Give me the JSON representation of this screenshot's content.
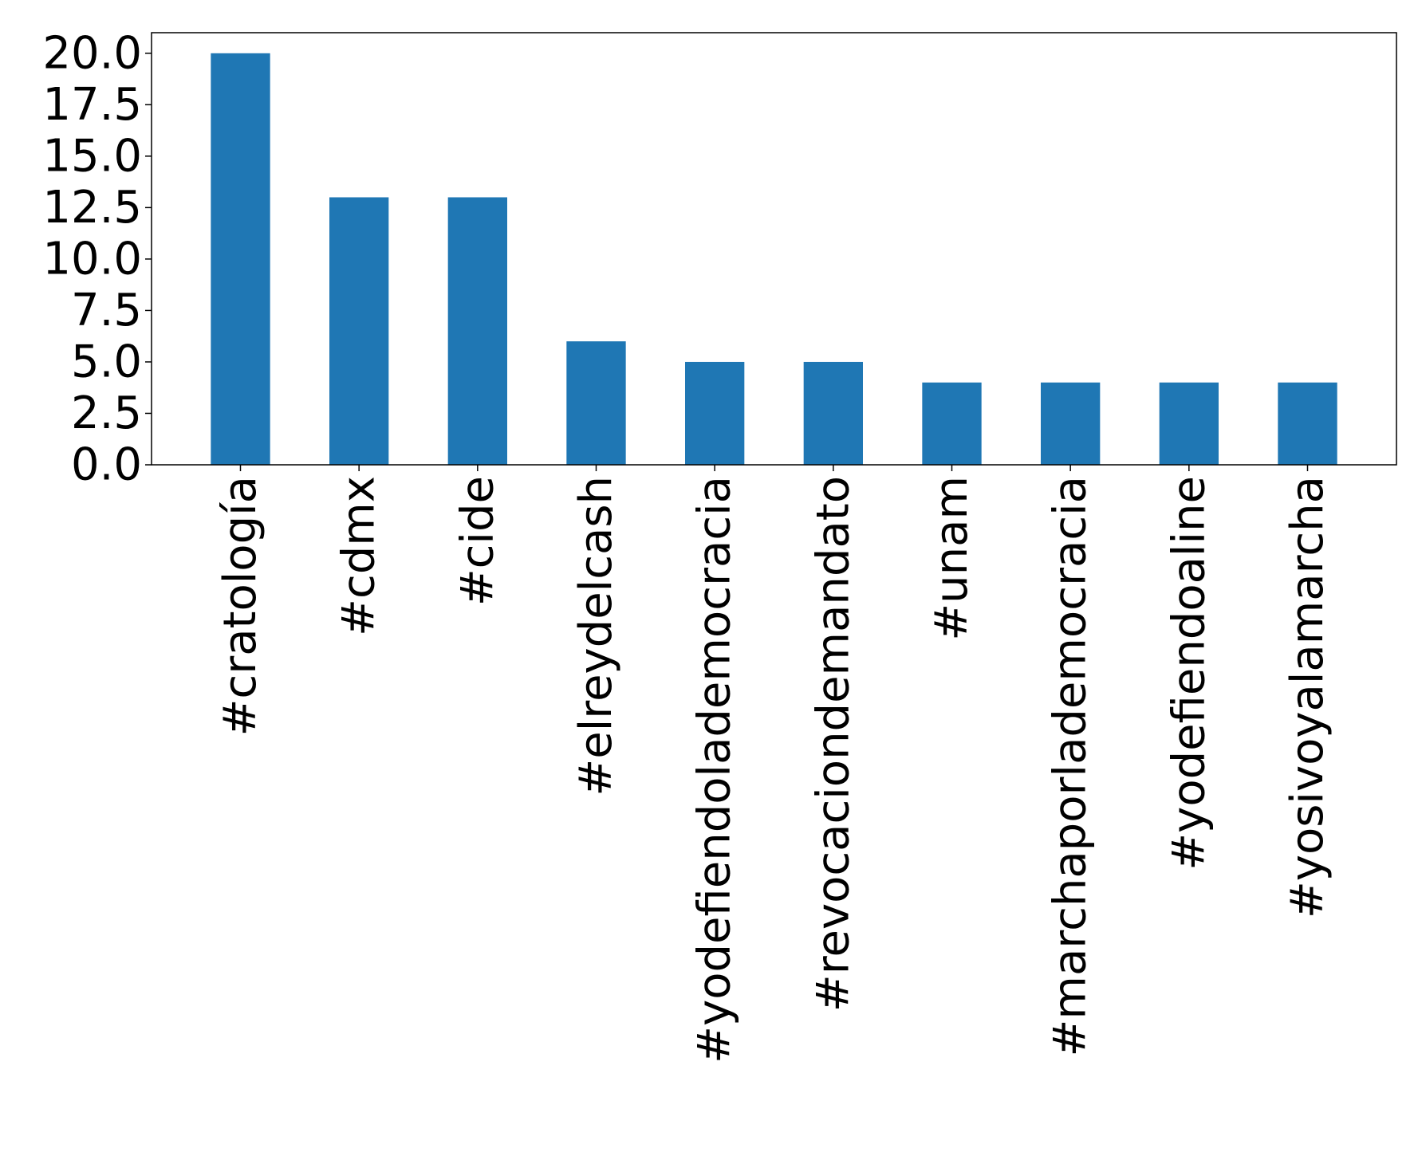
{
  "chart_data": {
    "type": "bar",
    "title": "",
    "xlabel": "",
    "ylabel": "",
    "categories": [
      "#cratología",
      "#cdmx",
      "#cide",
      "#elreydelcash",
      "#yodefiendolademocracia",
      "#revocaciondemandato",
      "#unam",
      "#marchaporlademocracia",
      "#yodefiendoaline",
      "#yosivoyalamarcha"
    ],
    "values": [
      20,
      13,
      13,
      6,
      5,
      5,
      4,
      4,
      4,
      4
    ],
    "ylim": [
      0,
      21
    ],
    "yticks": [
      0,
      2.5,
      5,
      7.5,
      10,
      12.5,
      15,
      17.5,
      20
    ],
    "ytick_labels": [
      "0.0",
      "2.5",
      "5.0",
      "7.5",
      "10.0",
      "12.5",
      "15.0",
      "17.5",
      "20.0"
    ],
    "bar_color": "#1f77b4",
    "grid": false,
    "legend": "none"
  }
}
